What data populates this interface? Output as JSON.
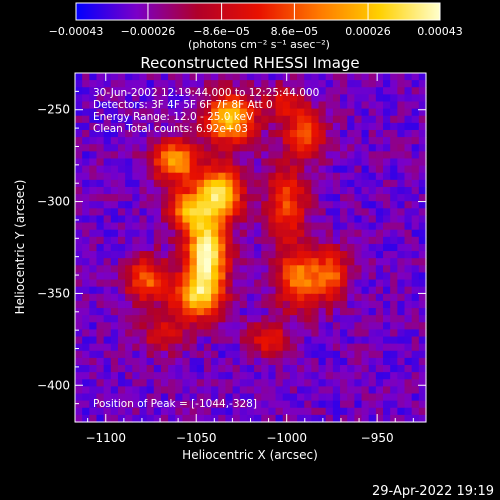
{
  "chart_data": {
    "type": "heatmap",
    "title": "Reconstructed RHESSI Image",
    "xlabel": "Heliocentric X (arcsec)",
    "ylabel": "Heliocentric Y (arcsec)",
    "xlim": [
      -1117,
      -923
    ],
    "ylim": [
      -420,
      -230
    ],
    "xticks": [
      -1100,
      -1050,
      -1000,
      -950
    ],
    "xtick_labels": [
      "−1100",
      "−1050",
      "−1000",
      "−950"
    ],
    "yticks": [
      -250,
      -300,
      -350,
      -400
    ],
    "ytick_labels": [
      "−250",
      "−300",
      "−350",
      "−400"
    ],
    "colorbar": {
      "range": [
        -0.00043,
        0.00043
      ],
      "ticks": [
        -0.00043,
        -0.00026,
        -8.6e-05,
        8.6e-05,
        0.00026,
        0.00043
      ],
      "tick_labels": [
        "−0.00043",
        "−0.00026",
        "−8.6e−05",
        "8.6e−05",
        "0.00026",
        "0.00043"
      ],
      "units": "(photons cm⁻² s⁻¹ asec⁻²)",
      "colors": [
        "#0000ff",
        "#7a00c8",
        "#b0002a",
        "#e81000",
        "#ff7800",
        "#ffd000",
        "#ffffcc"
      ]
    },
    "annotations": [
      "30-Jun-2002 12:19:44.000 to 12:25:44.000",
      "Detectors: 3F 4F 5F 6F 7F 8F  Att 0",
      "Energy Range: 12.0 - 25.0 keV",
      "Clean     Total counts: 6.92e+03"
    ],
    "peak_label": "Position of Peak = [-1044,-328]",
    "peak": [
      -1044,
      -328
    ],
    "sources": [
      {
        "x": -1044,
        "y": -328,
        "amp": 1.0,
        "sx": 8,
        "sy": 14
      },
      {
        "x": -1037,
        "y": -295,
        "amp": 0.85,
        "sx": 9,
        "sy": 10
      },
      {
        "x": -1031,
        "y": -255,
        "amp": 0.8,
        "sx": 10,
        "sy": 10
      },
      {
        "x": -1062,
        "y": -278,
        "amp": 0.72,
        "sx": 9,
        "sy": 8
      },
      {
        "x": -1055,
        "y": -305,
        "amp": 0.6,
        "sx": 8,
        "sy": 8
      },
      {
        "x": -1050,
        "y": -352,
        "amp": 0.7,
        "sx": 10,
        "sy": 9
      },
      {
        "x": -1078,
        "y": -342,
        "amp": 0.55,
        "sx": 8,
        "sy": 9
      },
      {
        "x": -1000,
        "y": -300,
        "amp": 0.5,
        "sx": 8,
        "sy": 15
      },
      {
        "x": -990,
        "y": -262,
        "amp": 0.55,
        "sx": 8,
        "sy": 9
      },
      {
        "x": -993,
        "y": -342,
        "amp": 0.6,
        "sx": 9,
        "sy": 12
      },
      {
        "x": -975,
        "y": -340,
        "amp": 0.5,
        "sx": 7,
        "sy": 10
      },
      {
        "x": -1010,
        "y": -375,
        "amp": 0.45,
        "sx": 8,
        "sy": 6
      },
      {
        "x": -1068,
        "y": -372,
        "amp": 0.35,
        "sx": 9,
        "sy": 7
      },
      {
        "x": -1002,
        "y": -245,
        "amp": 0.35,
        "sx": 7,
        "sy": 6
      }
    ]
  },
  "footer": {
    "date": "29-Apr-2022 19:19"
  }
}
